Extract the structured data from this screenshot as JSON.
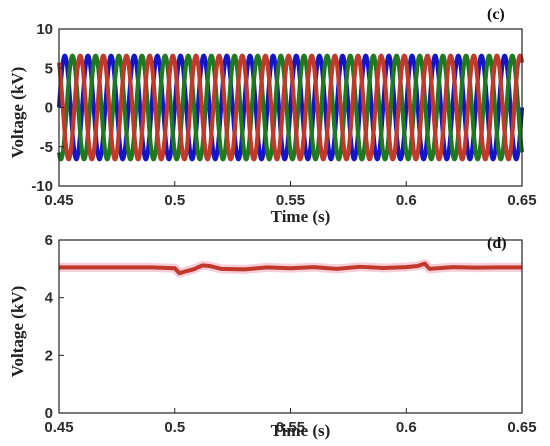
{
  "chart_data": [
    {
      "type": "line",
      "panel_label": "(c)",
      "xlabel": "Time (s)",
      "ylabel": "Voltage (kV)",
      "xlim": [
        0.45,
        0.65
      ],
      "ylim": [
        -10,
        10
      ],
      "xticks": [
        "0.45",
        "0.5",
        "0.55",
        "0.6",
        "0.65"
      ],
      "yticks": [
        "10",
        "5",
        "0",
        "-5",
        "-10"
      ],
      "frequency_hz": 100,
      "series": [
        {
          "color": "#1515c8",
          "amplitude": 6.6,
          "phase_deg": 0
        },
        {
          "color": "#1f7a1f",
          "amplitude": 6.6,
          "phase_deg": -120
        },
        {
          "color": "#c0392b",
          "amplitude": 6.6,
          "phase_deg": 120
        }
      ]
    },
    {
      "type": "line",
      "panel_label": "(d)",
      "xlabel": "Time (s)",
      "ylabel": "Voltage (kV)",
      "xlim": [
        0.45,
        0.65
      ],
      "ylim": [
        0,
        6
      ],
      "xticks": [
        "0.45",
        "0.5",
        "0.55",
        "0.6",
        "0.65"
      ],
      "yticks": [
        "6",
        "4",
        "2",
        "0"
      ],
      "series": [
        {
          "color": "#c0392b",
          "x": [
            0.45,
            0.49,
            0.5,
            0.502,
            0.505,
            0.508,
            0.512,
            0.515,
            0.52,
            0.53,
            0.54,
            0.55,
            0.56,
            0.57,
            0.58,
            0.59,
            0.6,
            0.605,
            0.608,
            0.61,
            0.62,
            0.63,
            0.64,
            0.65
          ],
          "y": [
            5.05,
            5.05,
            5.02,
            4.85,
            4.92,
            4.98,
            5.12,
            5.1,
            5.0,
            4.98,
            5.05,
            5.02,
            5.06,
            5.0,
            5.07,
            5.03,
            5.06,
            5.1,
            5.18,
            5.0,
            5.06,
            5.04,
            5.05,
            5.05
          ]
        }
      ]
    }
  ]
}
